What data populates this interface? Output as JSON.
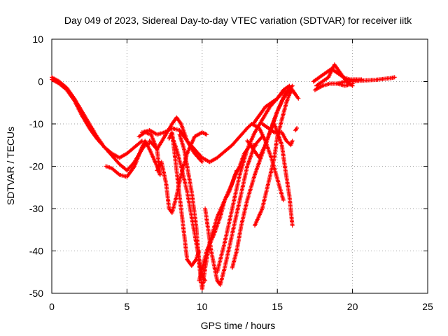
{
  "chart_data": {
    "type": "scatter",
    "title": "Day 049 of 2023, Sidereal Day-to-day VTEC variation (SDTVAR) for receiver iitk",
    "xlabel": "GPS time / hours",
    "ylabel": "SDTVAR / TECUs",
    "xlim": [
      0,
      25
    ],
    "ylim": [
      -50,
      10
    ],
    "xticks": [
      "0",
      "5",
      "10",
      "15",
      "20",
      "25"
    ],
    "yticks": [
      "-50",
      "-40",
      "-30",
      "-20",
      "-10",
      "0",
      "10"
    ],
    "grid": true,
    "marker": "+",
    "color": "#ff0000",
    "series": [
      {
        "x": [
          0.0,
          0.5,
          1.0,
          1.5,
          2.0,
          2.5,
          3.0,
          3.5,
          4.0,
          4.5,
          5.0,
          5.5,
          6.0
        ],
        "y": [
          1,
          0,
          -1.5,
          -4,
          -7,
          -10,
          -13,
          -15.5,
          -17,
          -18,
          -17,
          -15.5,
          -14
        ]
      },
      {
        "x": [
          0.0,
          0.5,
          1.0,
          1.5,
          2.0,
          2.5,
          3.0,
          3.5,
          4.0,
          4.5,
          5.0,
          5.5,
          6.0,
          6.2,
          6.5
        ],
        "y": [
          0.5,
          -0.5,
          -2,
          -4.5,
          -8,
          -11,
          -13.5,
          -15.5,
          -17.5,
          -19.5,
          -21,
          -19,
          -16,
          -15,
          -14.5
        ]
      },
      {
        "x": [
          3.6,
          4.0,
          4.5,
          5.0,
          5.5,
          6.0,
          6.2,
          6.5,
          7.0,
          7.2
        ],
        "y": [
          -20,
          -20.5,
          -22,
          -22.5,
          -20,
          -15.5,
          -14,
          -16,
          -20,
          -22
        ]
      },
      {
        "x": [
          5.8,
          6.2,
          6.6,
          7.0,
          7.2
        ],
        "y": [
          -13,
          -12,
          -12.5,
          -16,
          -22
        ]
      },
      {
        "x": [
          6.0,
          6.5,
          7.0,
          7.5,
          8.0,
          8.5,
          9.0,
          9.5,
          10.0,
          10.5,
          11.0,
          11.5,
          12.0,
          12.5,
          13.0,
          13.3
        ],
        "y": [
          -12,
          -11.5,
          -12.5,
          -12,
          -11,
          -11.5,
          -14,
          -16,
          -18,
          -19,
          -18,
          -16.5,
          -15,
          -13,
          -11,
          -10
        ]
      },
      {
        "x": [
          6.5,
          7.0,
          7.5,
          8.0,
          8.3,
          8.6,
          9.0,
          9.5,
          10.0
        ],
        "y": [
          -14,
          -16,
          -13,
          -10,
          -8.5,
          -10,
          -14,
          -17,
          -19
        ]
      },
      {
        "x": [
          7.0,
          7.3,
          7.6,
          7.8,
          8.0,
          8.3,
          8.6,
          9.0,
          9.5,
          10.0,
          10.3
        ],
        "y": [
          -21,
          -19,
          -24,
          -30,
          -31,
          -27,
          -22,
          -17,
          -13,
          -12,
          -12.5
        ]
      },
      {
        "x": [
          7.8,
          8.0,
          8.2,
          8.5,
          8.8,
          9.0,
          9.3,
          9.6,
          9.8
        ],
        "y": [
          -13.5,
          -12,
          -18,
          -27,
          -36,
          -42,
          -43.5,
          -42,
          -40
        ]
      },
      {
        "x": [
          8.0,
          8.3,
          8.6,
          9.0,
          9.4,
          9.8,
          10.0,
          10.2
        ],
        "y": [
          -13,
          -16,
          -20,
          -26,
          -34,
          -42,
          -46,
          -47
        ]
      },
      {
        "x": [
          8.5,
          8.8,
          9.0,
          9.3,
          9.6,
          9.8,
          10.0,
          10.2,
          10.5,
          11.0,
          11.5,
          12.0,
          12.3
        ],
        "y": [
          -12.5,
          -16,
          -20,
          -26,
          -34,
          -43,
          -49,
          -44,
          -38,
          -32,
          -28,
          -24,
          -21
        ]
      },
      {
        "x": [
          9.8,
          10.3,
          10.8,
          11.2,
          11.5,
          11.8,
          12.2,
          12.5,
          12.8,
          13.2,
          13.6
        ],
        "y": [
          -47,
          -40,
          -36,
          -32,
          -28,
          -26,
          -22,
          -20,
          -17,
          -15,
          -15
        ]
      },
      {
        "x": [
          10.2,
          10.6,
          11.0,
          11.2,
          11.5,
          12.0,
          12.5,
          13.0,
          13.5,
          14.0
        ],
        "y": [
          -30,
          -40,
          -47,
          -48,
          -44,
          -36,
          -28,
          -20,
          -15,
          -13
        ]
      },
      {
        "x": [
          11.0,
          11.5,
          12.0,
          12.5,
          13.0,
          13.5,
          14.0,
          14.5,
          15.0,
          15.5
        ],
        "y": [
          -45,
          -38,
          -30,
          -22,
          -16,
          -12,
          -9,
          -6,
          -4,
          -2
        ]
      },
      {
        "x": [
          12.0,
          12.3,
          12.6,
          13.0,
          13.5,
          14.0,
          14.5,
          15.0,
          15.5,
          16.0
        ],
        "y": [
          -44,
          -40,
          -34,
          -28,
          -22,
          -17,
          -12,
          -7,
          -3,
          -1
        ]
      },
      {
        "x": [
          13.4,
          13.8,
          14.2,
          14.6,
          15.0,
          15.4,
          15.8,
          16.2
        ],
        "y": [
          -10,
          -8,
          -6,
          -5,
          -4,
          -2,
          -1,
          -3
        ]
      },
      {
        "x": [
          13.0,
          13.4,
          13.8,
          14.2,
          14.6,
          15.0,
          15.4,
          15.8,
          16.0
        ],
        "y": [
          -14,
          -16,
          -18,
          -15,
          -11,
          -7,
          -4,
          -2,
          -2
        ]
      },
      {
        "x": [
          13.5,
          14.0,
          14.4,
          14.8,
          15.0,
          15.3,
          15.6,
          15.8,
          16.0,
          16.4
        ],
        "y": [
          -34,
          -30,
          -24,
          -18,
          -13,
          -9,
          -5,
          -3,
          -2,
          -4
        ]
      },
      {
        "x": [
          13.3,
          13.8,
          14.2,
          14.6,
          15.0,
          15.4
        ],
        "y": [
          -10,
          -11,
          -14,
          -18,
          -23,
          -28
        ]
      },
      {
        "x": [
          14.0,
          14.4,
          14.8,
          15.0,
          15.3,
          15.6,
          15.9,
          16.0
        ],
        "y": [
          -10,
          -11,
          -12,
          -12,
          -12,
          -14,
          -15,
          -14
        ]
      },
      {
        "x": [
          14.8,
          15.0,
          15.3,
          15.5,
          15.8,
          16.0
        ],
        "y": [
          -10,
          -12,
          -15,
          -20,
          -27,
          -34
        ]
      },
      {
        "x": [
          16.2,
          16.3
        ],
        "y": [
          -11.5,
          -11
        ]
      },
      {
        "x": [
          17.4,
          17.8,
          18.2,
          18.6,
          19.0,
          19.4,
          19.8,
          20.2,
          20.6
        ],
        "y": [
          0,
          1,
          2,
          3,
          2,
          1,
          0.5,
          0.5,
          0.5
        ]
      },
      {
        "x": [
          17.6,
          18.0,
          18.4,
          18.8,
          19.2,
          19.6,
          20.0
        ],
        "y": [
          -1,
          0,
          1,
          4,
          2,
          0,
          -1
        ]
      },
      {
        "x": [
          17.5,
          18.0,
          18.5,
          19.0,
          19.5,
          20.0
        ],
        "y": [
          -2,
          -1,
          -0.5,
          -0.5,
          -1,
          -0.5
        ]
      },
      {
        "x": [
          19.0,
          19.5,
          20.0,
          20.5,
          21.0,
          21.5,
          22.0,
          22.5,
          22.8
        ],
        "y": [
          -0.5,
          0,
          0,
          0.2,
          0.3,
          0.4,
          0.6,
          0.8,
          1
        ]
      }
    ]
  }
}
